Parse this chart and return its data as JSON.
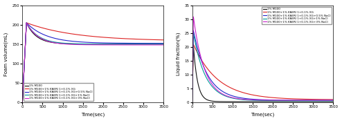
{
  "legend_labels": [
    "1% M100",
    "1% M100+1% KAERI 1+0.1% XG",
    "1% M100+1% KAERI 1+0.1% XG+0.5% NaCl",
    "1% M100+1% KAERI 1+0.1% XG+1% NaCl",
    "1% M100+1% KAERI 1+0.1% XG+3% NaCl"
  ],
  "colors": [
    "#111111",
    "#dd2222",
    "#2222cc",
    "#009999",
    "#cc22cc"
  ],
  "xlabel": "Time(sec)",
  "ylabel_left": "Foam volume(mL)",
  "ylabel_right": "Liquid fraction(%)",
  "xlim": [
    0,
    3500
  ],
  "ylim_left": [
    0,
    250
  ],
  "ylim_right": [
    0,
    35
  ],
  "yticks_left": [
    0,
    50,
    100,
    150,
    200,
    250
  ],
  "yticks_right": [
    0,
    5,
    10,
    15,
    20,
    25,
    30,
    35
  ],
  "xticks": [
    0,
    500,
    1000,
    1500,
    2000,
    2500,
    3000,
    3500
  ],
  "lw": 0.8,
  "foam_params": {
    "rise_end": 100,
    "peak": 205,
    "black": {
      "end": 150,
      "decay": 250
    },
    "red": {
      "end": 158,
      "decay": 1200
    },
    "blue": {
      "end": 152,
      "decay": 500
    },
    "cyan": {
      "end": 150,
      "decay": 300
    },
    "magenta": {
      "end": 148,
      "decay": 300
    }
  },
  "liq_params": {
    "rise_end": 30,
    "black": {
      "peak": 21,
      "end": 0.3,
      "decay": 100
    },
    "red": {
      "peak": 21,
      "end": 1.0,
      "decay": 600
    },
    "blue": {
      "peak": 26,
      "end": 0.8,
      "decay": 350
    },
    "cyan": {
      "peak": 25,
      "end": 0.6,
      "decay": 300
    },
    "magenta": {
      "peak": 31,
      "end": 0.8,
      "decay": 280
    }
  }
}
